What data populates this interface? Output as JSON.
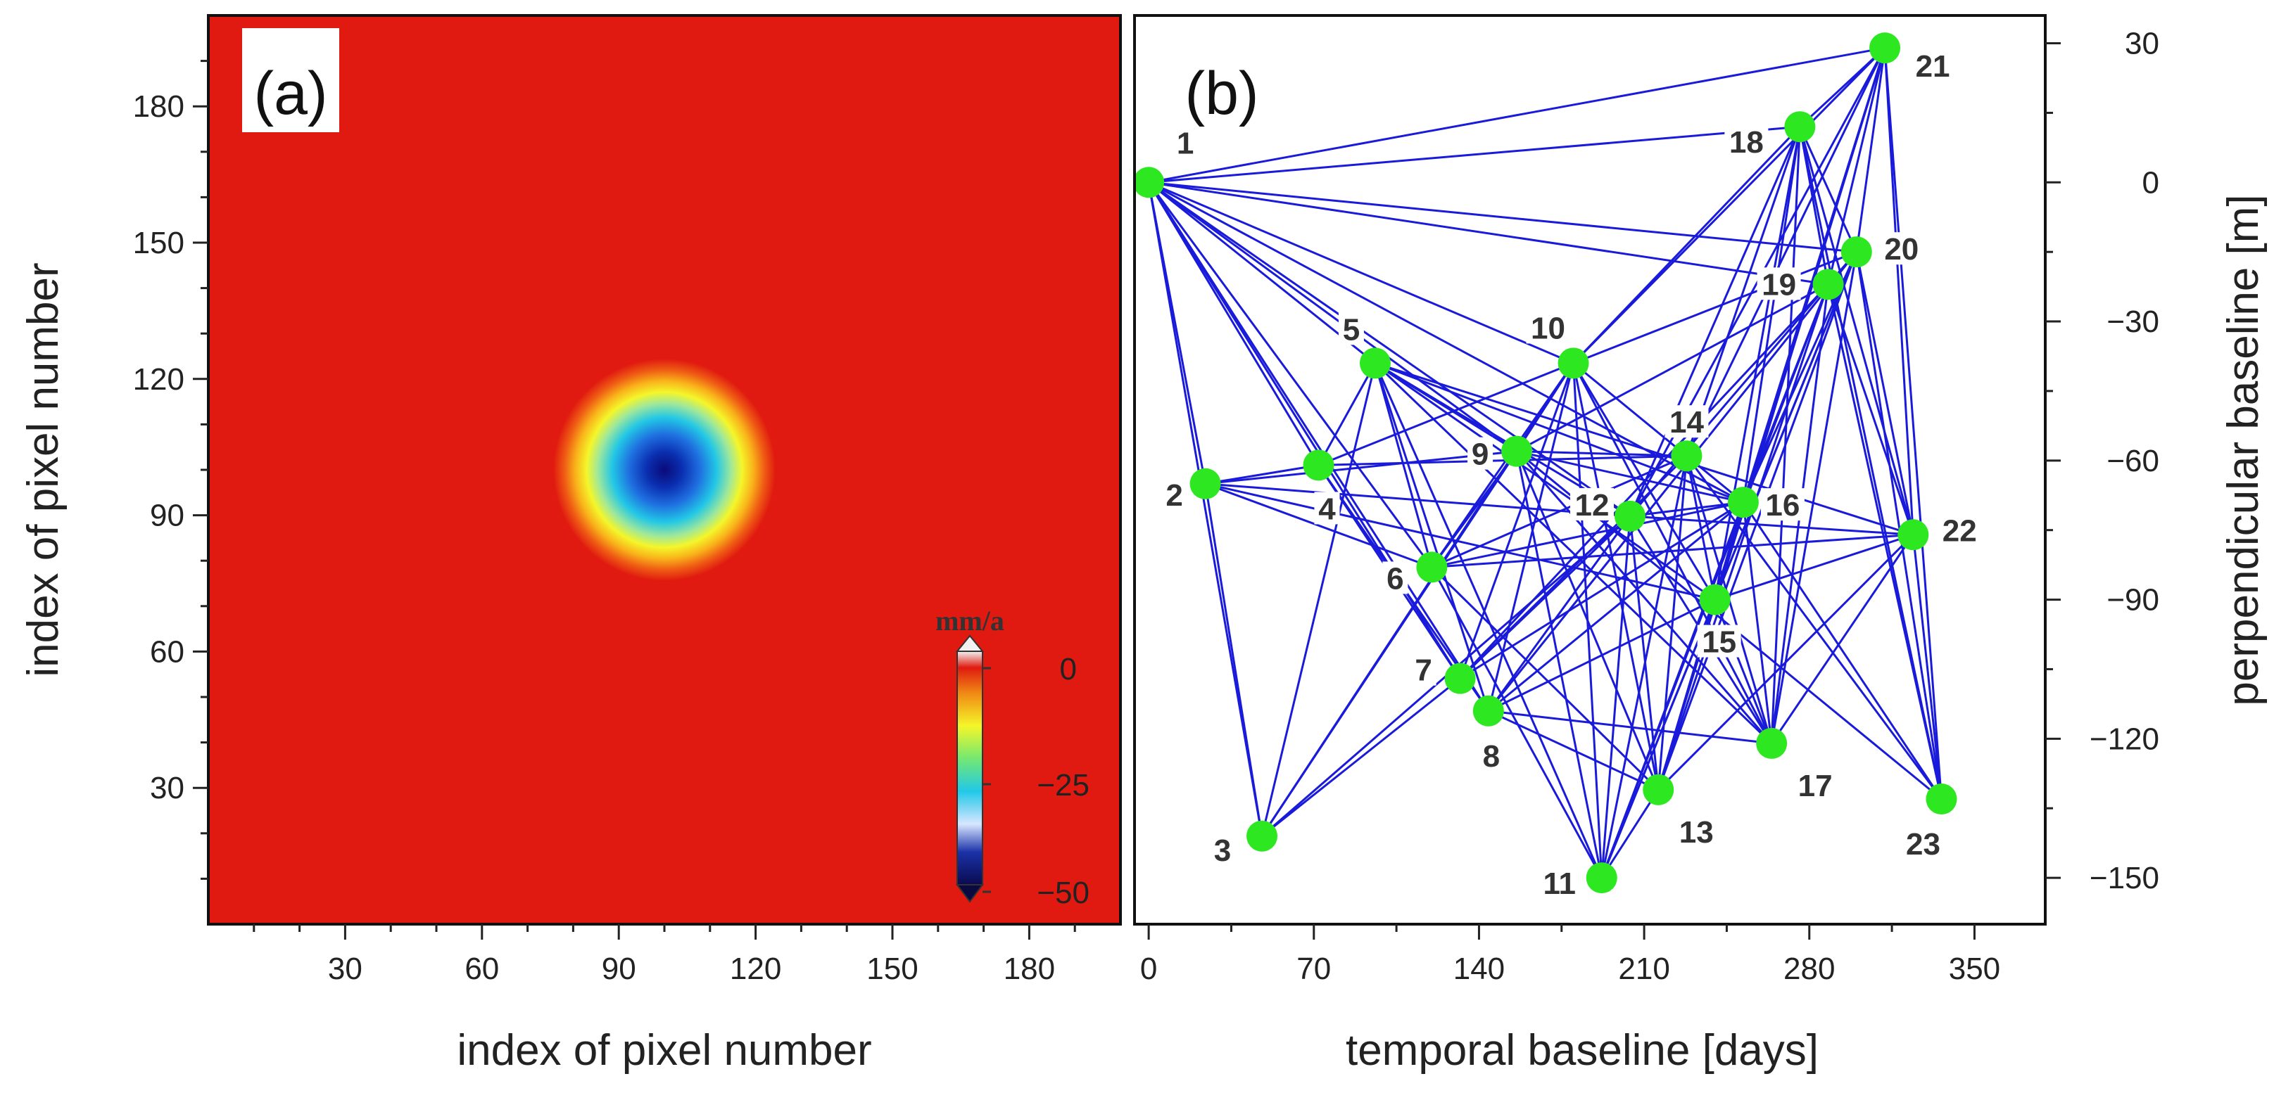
{
  "chart_data": [
    {
      "type": "heatmap",
      "panel_label": "(a)",
      "xlabel": "index of pixel number",
      "ylabel": "index of pixel number",
      "xlim": [
        0,
        200
      ],
      "ylim": [
        0,
        200
      ],
      "x_ticks": [
        30,
        60,
        90,
        120,
        150,
        180
      ],
      "y_ticks": [
        30,
        60,
        90,
        120,
        150,
        180
      ],
      "x_tick_labels": [
        "30",
        "60",
        "90",
        "120",
        "150",
        "180"
      ],
      "y_tick_labels": [
        "30",
        "60",
        "90",
        "120",
        "150",
        "180"
      ],
      "deformation_center": [
        100,
        100
      ],
      "min_value": -50,
      "background_value": 0,
      "colorbar": {
        "title": "mm/a",
        "range": [
          -50,
          0
        ],
        "ticks": [
          0,
          -25,
          -50
        ],
        "tick_labels": [
          "0",
          "−25",
          "−50"
        ]
      },
      "colors": {
        "background": "#e01a10",
        "min": "#0a0a7a"
      }
    },
    {
      "type": "scatter",
      "panel_label": "(b)",
      "xlabel": "temporal baseline [days]",
      "ylabel": "perpendicular baseline [m]",
      "xlim": [
        -6,
        380
      ],
      "ylim": [
        -160,
        36
      ],
      "x_ticks": [
        0,
        70,
        140,
        210,
        280,
        350
      ],
      "y_ticks": [
        30,
        0,
        -30,
        -60,
        -90,
        -120,
        -150
      ],
      "x_tick_labels": [
        "0",
        "70",
        "140",
        "210",
        "280",
        "350"
      ],
      "y_tick_labels": [
        "30",
        "0",
        "−30",
        "−60",
        "−90",
        "−120",
        "−150"
      ],
      "colors": {
        "edge": "#1a1adb",
        "node": "#2de820"
      },
      "nodes": [
        {
          "id": 1,
          "label": "1",
          "t": 0,
          "b": 0
        },
        {
          "id": 2,
          "label": "2",
          "t": 24,
          "b": -65
        },
        {
          "id": 3,
          "label": "3",
          "t": 48,
          "b": -141
        },
        {
          "id": 4,
          "label": "4",
          "t": 72,
          "b": -61
        },
        {
          "id": 5,
          "label": "5",
          "t": 96,
          "b": -39
        },
        {
          "id": 6,
          "label": "6",
          "t": 120,
          "b": -83
        },
        {
          "id": 7,
          "label": "7",
          "t": 132,
          "b": -107
        },
        {
          "id": 8,
          "label": "8",
          "t": 144,
          "b": -114
        },
        {
          "id": 9,
          "label": "9",
          "t": 156,
          "b": -58
        },
        {
          "id": 10,
          "label": "10",
          "t": 180,
          "b": -39
        },
        {
          "id": 11,
          "label": "11",
          "t": 192,
          "b": -150
        },
        {
          "id": 12,
          "label": "12",
          "t": 204,
          "b": -72
        },
        {
          "id": 13,
          "label": "13",
          "t": 216,
          "b": -131
        },
        {
          "id": 14,
          "label": "14",
          "t": 228,
          "b": -59
        },
        {
          "id": 15,
          "label": "15",
          "t": 240,
          "b": -90
        },
        {
          "id": 16,
          "label": "16",
          "t": 252,
          "b": -69
        },
        {
          "id": 17,
          "label": "17",
          "t": 264,
          "b": -121
        },
        {
          "id": 18,
          "label": "18",
          "t": 276,
          "b": 12
        },
        {
          "id": 19,
          "label": "19",
          "t": 288,
          "b": -22
        },
        {
          "id": 20,
          "label": "20",
          "t": 300,
          "b": -15
        },
        {
          "id": 21,
          "label": "21",
          "t": 312,
          "b": 29
        },
        {
          "id": 22,
          "label": "22",
          "t": 324,
          "b": -76
        },
        {
          "id": 23,
          "label": "23",
          "t": 336,
          "b": -133
        }
      ],
      "edges": [
        [
          1,
          2
        ],
        [
          1,
          3
        ],
        [
          1,
          4
        ],
        [
          1,
          5
        ],
        [
          1,
          6
        ],
        [
          1,
          7
        ],
        [
          1,
          8
        ],
        [
          1,
          9
        ],
        [
          1,
          10
        ],
        [
          1,
          12
        ],
        [
          1,
          16
        ],
        [
          1,
          18
        ],
        [
          1,
          19
        ],
        [
          1,
          20
        ],
        [
          1,
          21
        ],
        [
          2,
          3
        ],
        [
          2,
          4
        ],
        [
          2,
          6
        ],
        [
          2,
          9
        ],
        [
          2,
          12
        ],
        [
          2,
          15
        ],
        [
          3,
          5
        ],
        [
          3,
          7
        ],
        [
          3,
          9
        ],
        [
          3,
          10
        ],
        [
          3,
          12
        ],
        [
          4,
          5
        ],
        [
          4,
          7
        ],
        [
          4,
          8
        ],
        [
          4,
          10
        ],
        [
          4,
          14
        ],
        [
          5,
          6
        ],
        [
          5,
          8
        ],
        [
          5,
          9
        ],
        [
          5,
          11
        ],
        [
          5,
          12
        ],
        [
          5,
          15
        ],
        [
          5,
          16
        ],
        [
          5,
          17
        ],
        [
          5,
          22
        ],
        [
          6,
          9
        ],
        [
          6,
          10
        ],
        [
          6,
          11
        ],
        [
          6,
          13
        ],
        [
          6,
          14
        ],
        [
          6,
          16
        ],
        [
          6,
          22
        ],
        [
          7,
          10
        ],
        [
          7,
          12
        ],
        [
          7,
          14
        ],
        [
          7,
          16
        ],
        [
          7,
          19
        ],
        [
          8,
          10
        ],
        [
          8,
          12
        ],
        [
          8,
          13
        ],
        [
          8,
          15
        ],
        [
          8,
          16
        ],
        [
          8,
          17
        ],
        [
          8,
          20
        ],
        [
          9,
          10
        ],
        [
          9,
          11
        ],
        [
          9,
          13
        ],
        [
          9,
          14
        ],
        [
          9,
          16
        ],
        [
          9,
          17
        ],
        [
          9,
          19
        ],
        [
          9,
          23
        ],
        [
          10,
          11
        ],
        [
          10,
          13
        ],
        [
          10,
          15
        ],
        [
          10,
          16
        ],
        [
          10,
          17
        ],
        [
          10,
          18
        ],
        [
          10,
          20
        ],
        [
          10,
          21
        ],
        [
          11,
          12
        ],
        [
          11,
          13
        ],
        [
          11,
          14
        ],
        [
          11,
          15
        ],
        [
          11,
          16
        ],
        [
          11,
          19
        ],
        [
          11,
          20
        ],
        [
          12,
          13
        ],
        [
          12,
          16
        ],
        [
          12,
          17
        ],
        [
          12,
          18
        ],
        [
          12,
          19
        ],
        [
          12,
          21
        ],
        [
          12,
          22
        ],
        [
          13,
          14
        ],
        [
          13,
          15
        ],
        [
          13,
          16
        ],
        [
          13,
          19
        ],
        [
          13,
          20
        ],
        [
          13,
          21
        ],
        [
          13,
          22
        ],
        [
          14,
          15
        ],
        [
          14,
          17
        ],
        [
          14,
          18
        ],
        [
          14,
          21
        ],
        [
          14,
          23
        ],
        [
          15,
          16
        ],
        [
          15,
          17
        ],
        [
          15,
          18
        ],
        [
          15,
          20
        ],
        [
          15,
          21
        ],
        [
          15,
          22
        ],
        [
          16,
          17
        ],
        [
          16,
          18
        ],
        [
          16,
          19
        ],
        [
          16,
          20
        ],
        [
          16,
          21
        ],
        [
          16,
          23
        ],
        [
          17,
          18
        ],
        [
          17,
          19
        ],
        [
          17,
          20
        ],
        [
          17,
          22
        ],
        [
          18,
          19
        ],
        [
          18,
          20
        ],
        [
          18,
          21
        ],
        [
          18,
          22
        ],
        [
          18,
          23
        ],
        [
          19,
          20
        ],
        [
          19,
          21
        ],
        [
          19,
          22
        ],
        [
          19,
          23
        ],
        [
          20,
          21
        ],
        [
          20,
          22
        ],
        [
          20,
          23
        ],
        [
          21,
          22
        ],
        [
          21,
          23
        ],
        [
          22,
          23
        ]
      ]
    }
  ]
}
